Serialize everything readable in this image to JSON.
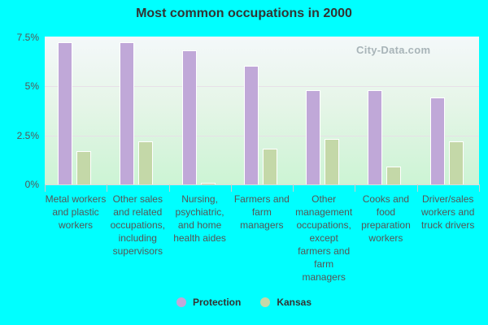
{
  "title": "Most common occupations in 2000",
  "watermark": "City-Data.com",
  "colors": {
    "protection": "#c0a8d8",
    "kansas": "#c4d8a8"
  },
  "legend": [
    {
      "label": "Protection",
      "color": "#c0a8d8"
    },
    {
      "label": "Kansas",
      "color": "#c4d8a8"
    }
  ],
  "y_ticks": [
    "7.5%",
    "5%",
    "2.5%",
    "0%"
  ],
  "chart_data": {
    "type": "bar",
    "title": "Most common occupations in 2000",
    "xlabel": "",
    "ylabel": "",
    "ylim": [
      0,
      7.5
    ],
    "y_ticks": [
      0,
      2.5,
      5,
      7.5
    ],
    "y_tick_labels": [
      "0%",
      "2.5%",
      "5%",
      "7.5%"
    ],
    "grid": true,
    "legend_position": "bottom",
    "categories": [
      "Metal workers and plastic workers",
      "Other sales and related occupations, including supervisors",
      "Nursing, psychiatric, and home health aides",
      "Farmers and farm managers",
      "Other management occupations, except farmers and farm managers",
      "Cooks and food preparation workers",
      "Driver/sales workers and truck drivers"
    ],
    "series": [
      {
        "name": "Protection",
        "values": [
          7.2,
          7.2,
          6.8,
          6.0,
          4.8,
          4.8,
          4.4
        ]
      },
      {
        "name": "Kansas",
        "values": [
          1.7,
          2.2,
          0.1,
          1.8,
          2.3,
          0.9,
          2.2
        ]
      }
    ]
  }
}
